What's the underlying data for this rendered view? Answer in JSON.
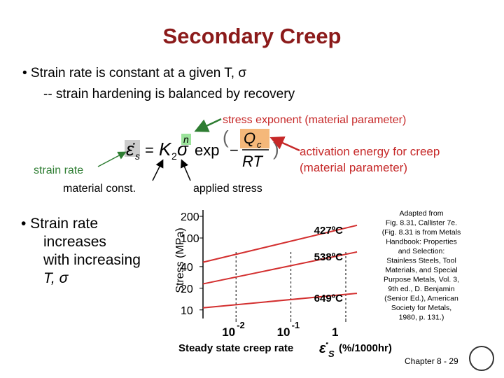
{
  "title": "Secondary Creep",
  "bullet1": "• Strain rate is constant at a given T, σ",
  "sub1": "-- strain hardening is balanced by recovery",
  "annot_exponent": "stress exponent (material parameter)",
  "annot_activation": [
    "activation energy for creep",
    "(material parameter)"
  ],
  "annot_strain_rate": "strain rate",
  "annot_material": "material const.",
  "annot_applied": "applied stress",
  "equation": {
    "lhs": "ε̇",
    "lhs_sub": "s",
    "eq": "=",
    "k": "K",
    "k_sub": "2",
    "sigma": "σ",
    "n": "n",
    "exp": "exp",
    "minus": "−",
    "num": "Q",
    "num_sub": "c",
    "den": "RT"
  },
  "bullet2": [
    "• Strain rate",
    "increases",
    "with increasing",
    "T, σ"
  ],
  "plot": {
    "type": "line",
    "y_label": "Stress (MPa)",
    "x_label": "Steady state creep rate",
    "x_label_symbol": "ε̇",
    "x_label_sub": "S",
    "x_label_unit": "(%/1000hr)",
    "log_x": true,
    "log_y": true,
    "xlim": [
      0.0025,
      1.6
    ],
    "ylim": [
      7.6,
      245
    ],
    "xticks": [
      {
        "value": 0.01,
        "label": "10",
        "exponent": "-2"
      },
      {
        "value": 0.1,
        "label": "10",
        "exponent": "-1"
      },
      1
    ],
    "yticks": [
      200,
      100,
      40,
      20,
      10
    ],
    "series": [
      {
        "name": "427ºC",
        "color": "#d32f2f",
        "x": [
          0.0025,
          1.6
        ],
        "values": [
          46,
          150
        ]
      },
      {
        "name": "538ºC",
        "color": "#d32f2f",
        "x": [
          0.0025,
          1.6
        ],
        "values": [
          23,
          64
        ]
      },
      {
        "name": "649ºC",
        "color": "#d32f2f",
        "x": [
          0.0025,
          1.6
        ],
        "values": [
          10.7,
          17
        ]
      }
    ]
  },
  "citation": [
    "Adapted from",
    "Fig. 8.31, Callister 7e.",
    "(Fig. 8.31 is from Metals",
    "Handbook: Properties",
    "and Selection:",
    "Stainless Steels, Tool",
    "Materials, and Special",
    "Purpose Metals, Vol. 3,",
    "9th ed., D. Benjamin",
    "(Senior Ed.), American",
    "Society for Metals,",
    "1980, p. 131.)"
  ],
  "footer": "Chapter 8 -  29"
}
